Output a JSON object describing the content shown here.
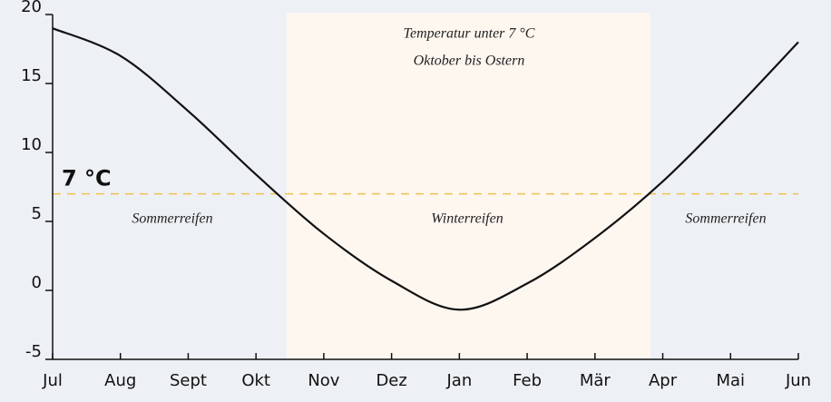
{
  "chart_data": {
    "type": "line",
    "categories": [
      "Jul",
      "Aug",
      "Sept",
      "Okt",
      "Nov",
      "Dez",
      "Jan",
      "Feb",
      "Mär",
      "Apr",
      "Mai",
      "Jun"
    ],
    "values": [
      19,
      17.0,
      13.0,
      8.4,
      4.1,
      0.7,
      -1.4,
      0.5,
      3.8,
      7.9,
      12.8,
      18.0
    ],
    "color": "#111111",
    "ylim": [
      -5,
      20
    ],
    "yticks": [
      -5,
      0,
      5,
      10,
      15,
      20
    ],
    "threshold": 7,
    "threshold_label": "7 °C",
    "threshold_color": "#f2c14e",
    "highlight_span": [
      3.45,
      8.82
    ],
    "highlight_color": "#fdf7f0",
    "annotations": [
      "Temperatur unter 7 °C",
      "Oktober bis Ostern",
      "Sommerreifen",
      "Winterreifen",
      "Sommerreifen"
    ]
  }
}
